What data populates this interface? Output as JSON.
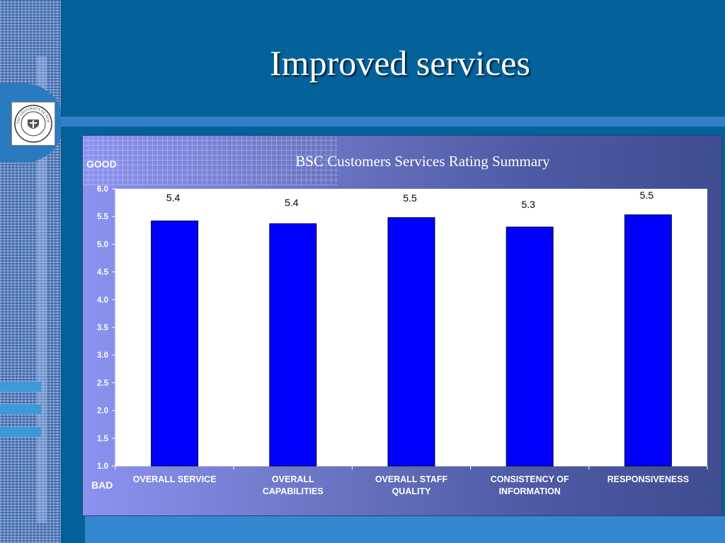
{
  "slide": {
    "title": "Improved services",
    "seal_text": "THE UNIVERSITY OF NEW HAMPSHIRE 1923",
    "colors": {
      "background": "#036299",
      "bar": "#0000ff",
      "plot_area": "#ffffff"
    }
  },
  "chart_data": {
    "type": "bar",
    "title": "BSC Customers Services Rating Summary",
    "top_label": "GOOD",
    "bottom_label": "BAD",
    "categories": [
      [
        "OVERALL SERVICE"
      ],
      [
        "OVERALL",
        "CAPABILITIES"
      ],
      [
        "OVERALL STAFF",
        "QUALITY"
      ],
      [
        "CONSISTENCY OF",
        "INFORMATION"
      ],
      [
        "RESPONSIVENESS"
      ]
    ],
    "values": [
      5.42,
      5.37,
      5.48,
      5.31,
      5.53
    ],
    "data_labels": [
      "5.4",
      "5.4",
      "5.5",
      "5.3",
      "5.5"
    ],
    "ylim": [
      1.0,
      6.0
    ],
    "yticks": [
      "1.0",
      "1.5",
      "2.0",
      "2.5",
      "3.0",
      "3.5",
      "4.0",
      "4.5",
      "5.0",
      "5.5",
      "6.0"
    ],
    "grid": false,
    "legend": "none"
  }
}
